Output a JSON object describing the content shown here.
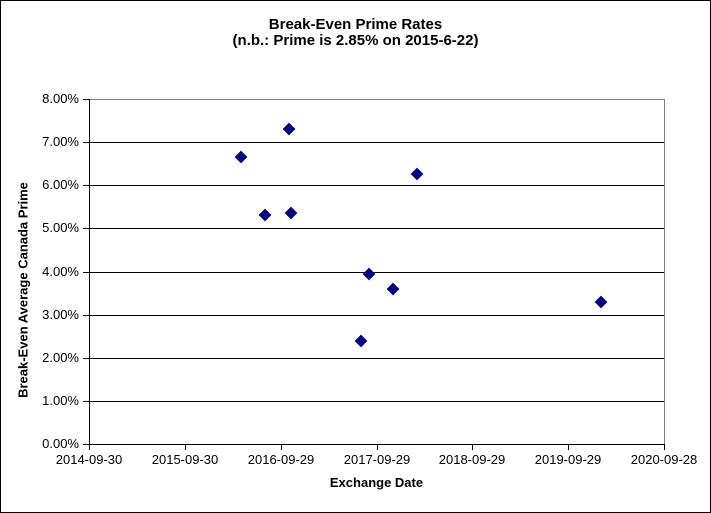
{
  "chart_data": {
    "type": "scatter",
    "title": "Break-Even Prime Rates",
    "subtitle": "(n.b.: Prime is 2.85% on 2015-6-22)",
    "xlabel": "Exchange Date",
    "ylabel": "Break-Even Average Canada Prime",
    "legend": "none",
    "grid": "horizontal",
    "x_axis": {
      "type": "date",
      "min": "2014-09-30",
      "max": "2020-09-28",
      "tick_labels": [
        "2014-09-30",
        "2015-09-30",
        "2016-09-29",
        "2017-09-29",
        "2018-09-29",
        "2019-09-29",
        "2020-09-28"
      ]
    },
    "y_axis": {
      "min_pct": 0,
      "max_pct": 8,
      "step_pct": 1,
      "tick_labels": [
        "0.00%",
        "1.00%",
        "2.00%",
        "3.00%",
        "4.00%",
        "5.00%",
        "6.00%",
        "7.00%",
        "8.00%"
      ]
    },
    "series": [
      {
        "marker": "diamond",
        "points": [
          {
            "date": "2016-05-01",
            "value_pct": 6.65
          },
          {
            "date": "2016-08-01",
            "value_pct": 5.3
          },
          {
            "date": "2016-11-01",
            "value_pct": 7.3
          },
          {
            "date": "2016-11-08",
            "value_pct": 5.35
          },
          {
            "date": "2017-08-01",
            "value_pct": 2.4
          },
          {
            "date": "2017-09-01",
            "value_pct": 3.95
          },
          {
            "date": "2017-12-01",
            "value_pct": 3.6
          },
          {
            "date": "2018-03-01",
            "value_pct": 6.25
          },
          {
            "date": "2020-02-01",
            "value_pct": 3.3
          }
        ]
      }
    ],
    "colors": {
      "marker": "#000080",
      "gridline": "#000000",
      "axis": "#000000",
      "plot_border": "#808080",
      "background": "#ffffff",
      "text": "#000000"
    }
  }
}
